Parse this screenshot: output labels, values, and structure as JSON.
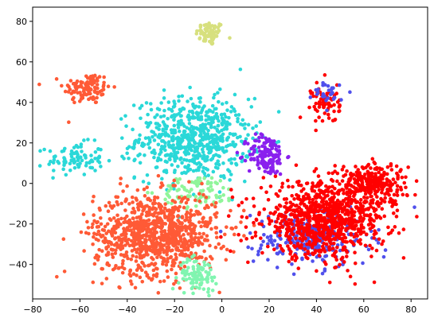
{
  "chart_data": {
    "type": "scatter",
    "title": "",
    "xlabel": "",
    "ylabel": "",
    "xlim": [
      -80,
      87
    ],
    "ylim": [
      -57,
      87
    ],
    "grid": false,
    "legend": "none",
    "x_ticks": [
      -80,
      -60,
      -40,
      -20,
      0,
      20,
      40,
      60,
      80
    ],
    "y_ticks": [
      -40,
      -20,
      0,
      20,
      40,
      60,
      80
    ],
    "x_tick_labels": [
      "−80",
      "−60",
      "−40",
      "−20",
      "0",
      "20",
      "40",
      "60",
      "80"
    ],
    "y_tick_labels": [
      "−40",
      "−20",
      "0",
      "20",
      "40",
      "60",
      "80"
    ],
    "clusters": [
      {
        "color": "#d7e07e",
        "center": [
          -5,
          74
        ],
        "spread": [
          3,
          3
        ],
        "count": 70
      },
      {
        "color": "#ff5a36",
        "center": [
          -57,
          47
        ],
        "spread": [
          5,
          4
        ],
        "count": 110
      },
      {
        "color": "#2ad8d8",
        "center": [
          -62,
          12
        ],
        "spread": [
          6,
          4
        ],
        "count": 90
      },
      {
        "color": "#2ad8d8",
        "center": [
          -12,
          22
        ],
        "spread": [
          12,
          10
        ],
        "count": 650
      },
      {
        "color": "#8a20ee",
        "center": [
          19,
          14
        ],
        "spread": [
          4,
          5
        ],
        "count": 150
      },
      {
        "color": "#90f59a",
        "center": [
          -10,
          -4
        ],
        "spread": [
          8,
          4
        ],
        "count": 90
      },
      {
        "color": "#ff5a36",
        "center": [
          -28,
          -25
        ],
        "spread": [
          13,
          10
        ],
        "count": 950
      },
      {
        "color": "#80f5b0",
        "center": [
          -10,
          -45
        ],
        "spread": [
          4,
          4
        ],
        "count": 90
      },
      {
        "color": "#5050ec",
        "center": [
          38,
          -27
        ],
        "spread": [
          12,
          7
        ],
        "count": 260
      },
      {
        "color": "#ff0000",
        "center": [
          43,
          -18
        ],
        "spread": [
          13,
          9
        ],
        "count": 900
      },
      {
        "color": "#ff0000",
        "center": [
          64,
          0
        ],
        "spread": [
          7,
          5
        ],
        "count": 250
      },
      {
        "color": "#ff0000",
        "center": [
          44,
          40
        ],
        "spread": [
          3,
          5
        ],
        "count": 70
      },
      {
        "color": "#5050ec",
        "center": [
          45,
          44
        ],
        "spread": [
          3,
          3
        ],
        "count": 30
      }
    ]
  }
}
